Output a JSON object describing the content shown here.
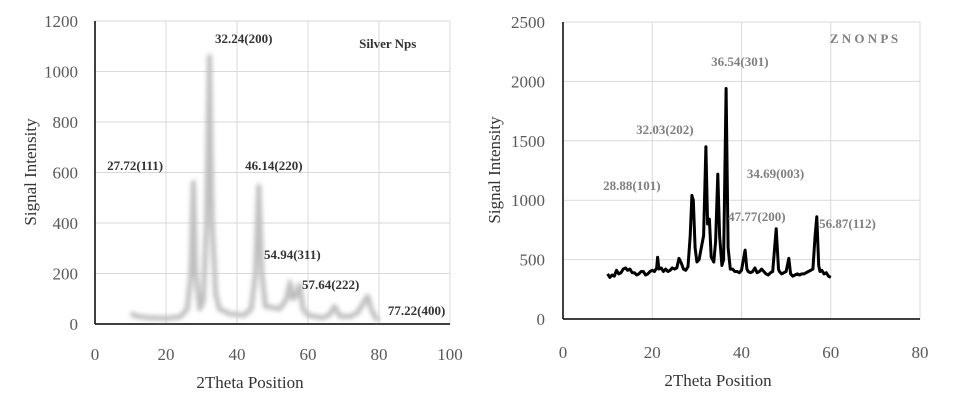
{
  "chart_data": [
    {
      "type": "line",
      "xlabel": "2Theta Position",
      "ylabel": "Signal Intensity",
      "xlim": [
        0,
        100
      ],
      "ylim": [
        0,
        1200
      ],
      "xticks": [
        0,
        20,
        40,
        60,
        80,
        100
      ],
      "yticks": [
        0,
        200,
        400,
        600,
        800,
        1000,
        1200
      ],
      "grid": true,
      "line_color": "#bfbfbf",
      "annotations": [
        {
          "text": "Silver Nps",
          "x": 74.4,
          "y": 1093
        },
        {
          "text": "32.24(200)",
          "x": 33.8,
          "y": 1113
        },
        {
          "text": "27.72(111)",
          "x": 3.4,
          "y": 610
        },
        {
          "text": "46.14(220)",
          "x": 42.3,
          "y": 610
        },
        {
          "text": "54.94(311)",
          "x": 47.6,
          "y": 257
        },
        {
          "text": "57.64(222)",
          "x": 58.3,
          "y": 139
        },
        {
          "text": "77.22(400)",
          "x": 82.5,
          "y": 36
        }
      ],
      "series": [
        {
          "points": [
            [
              10,
              40
            ],
            [
              12,
              30
            ],
            [
              15,
              25
            ],
            [
              20,
              22
            ],
            [
              24,
              28
            ],
            [
              26,
              60
            ],
            [
              27,
              200
            ],
            [
              27.72,
              560
            ],
            [
              28.4,
              200
            ],
            [
              29.5,
              60
            ],
            [
              30.5,
              90
            ],
            [
              31.4,
              400
            ],
            [
              32.24,
              1060
            ],
            [
              33,
              400
            ],
            [
              34,
              120
            ],
            [
              35,
              60
            ],
            [
              38,
              40
            ],
            [
              42,
              35
            ],
            [
              44,
              60
            ],
            [
              45.2,
              200
            ],
            [
              46.14,
              545
            ],
            [
              47,
              200
            ],
            [
              48,
              70
            ],
            [
              52,
              60
            ],
            [
              54,
              100
            ],
            [
              54.94,
              165
            ],
            [
              55.8,
              100
            ],
            [
              56.5,
              110
            ],
            [
              57.64,
              155
            ],
            [
              58.6,
              60
            ],
            [
              60,
              35
            ],
            [
              64,
              25
            ],
            [
              66,
              35
            ],
            [
              67.5,
              70
            ],
            [
              69,
              30
            ],
            [
              72,
              30
            ],
            [
              74,
              45
            ],
            [
              75.5,
              80
            ],
            [
              76.8,
              110
            ],
            [
              77.8,
              60
            ],
            [
              79,
              25
            ],
            [
              80,
              15
            ]
          ]
        }
      ]
    },
    {
      "type": "line",
      "xlabel": "2Theta Position",
      "ylabel": "Signal  Intensity",
      "xlim": [
        0,
        80
      ],
      "ylim": [
        0,
        2500
      ],
      "xticks": [
        0,
        20,
        40,
        60,
        80
      ],
      "yticks": [
        0,
        500,
        1000,
        1500,
        2000,
        2500
      ],
      "grid": true,
      "line_color": "#000000",
      "annotations": [
        {
          "text": "Z N O N P S",
          "x": 59.8,
          "y": 2323
        },
        {
          "text": "36.54(301)",
          "x": 33.2,
          "y": 2130
        },
        {
          "text": "32.03(202)",
          "x": 16.4,
          "y": 1557
        },
        {
          "text": "28.88(101)",
          "x": 9.0,
          "y": 1086
        },
        {
          "text": "34.69(003)",
          "x": 41.2,
          "y": 1187
        },
        {
          "text": "47.77(200)",
          "x": 37.0,
          "y": 825
        },
        {
          "text": "56.87(112)",
          "x": 57.4,
          "y": 766
        }
      ],
      "series": [
        {
          "points": [
            [
              10,
              380
            ],
            [
              10.5,
              350
            ],
            [
              11,
              370
            ],
            [
              11.5,
              360
            ],
            [
              12,
              410
            ],
            [
              12.5,
              380
            ],
            [
              13,
              390
            ],
            [
              13.5,
              420
            ],
            [
              14,
              430
            ],
            [
              14.5,
              410
            ],
            [
              15,
              420
            ],
            [
              15.5,
              390
            ],
            [
              16,
              390
            ],
            [
              16.5,
              370
            ],
            [
              17,
              380
            ],
            [
              17.5,
              400
            ],
            [
              18,
              400
            ],
            [
              18.5,
              370
            ],
            [
              19,
              380
            ],
            [
              19.5,
              400
            ],
            [
              20,
              410
            ],
            [
              20.5,
              400
            ],
            [
              21,
              430
            ],
            [
              21.2,
              520
            ],
            [
              21.5,
              420
            ],
            [
              22,
              430
            ],
            [
              22.5,
              400
            ],
            [
              23,
              420
            ],
            [
              23.5,
              400
            ],
            [
              24,
              410
            ],
            [
              24.5,
              430
            ],
            [
              25,
              420
            ],
            [
              25.5,
              430
            ],
            [
              26,
              510
            ],
            [
              26.5,
              470
            ],
            [
              27,
              420
            ],
            [
              27.5,
              410
            ],
            [
              28,
              440
            ],
            [
              28.5,
              700
            ],
            [
              28.88,
              1040
            ],
            [
              29.2,
              1000
            ],
            [
              29.6,
              600
            ],
            [
              30,
              480
            ],
            [
              30.5,
              500
            ],
            [
              31,
              600
            ],
            [
              31.5,
              700
            ],
            [
              32.03,
              1450
            ],
            [
              32.4,
              800
            ],
            [
              32.8,
              840
            ],
            [
              33.2,
              520
            ],
            [
              33.8,
              480
            ],
            [
              34.2,
              650
            ],
            [
              34.69,
              1220
            ],
            [
              35.1,
              700
            ],
            [
              35.6,
              450
            ],
            [
              36,
              500
            ],
            [
              36.54,
              1940
            ],
            [
              37,
              600
            ],
            [
              37.5,
              420
            ],
            [
              38,
              420
            ],
            [
              38.5,
              400
            ],
            [
              39,
              400
            ],
            [
              39.5,
              390
            ],
            [
              40,
              410
            ],
            [
              40.8,
              580
            ],
            [
              41.2,
              420
            ],
            [
              41.5,
              400
            ],
            [
              42,
              390
            ],
            [
              42.5,
              400
            ],
            [
              43,
              430
            ],
            [
              43.5,
              390
            ],
            [
              44,
              400
            ],
            [
              44.5,
              420
            ],
            [
              45,
              400
            ],
            [
              45.5,
              380
            ],
            [
              46,
              370
            ],
            [
              46.5,
              390
            ],
            [
              47,
              400
            ],
            [
              47.77,
              760
            ],
            [
              48.3,
              420
            ],
            [
              48.5,
              400
            ],
            [
              49,
              380
            ],
            [
              49.5,
              390
            ],
            [
              50,
              400
            ],
            [
              50.6,
              510
            ],
            [
              51,
              380
            ],
            [
              51.5,
              360
            ],
            [
              52,
              370
            ],
            [
              52.5,
              380
            ],
            [
              53,
              370
            ],
            [
              53.5,
              380
            ],
            [
              54,
              380
            ],
            [
              54.5,
              390
            ],
            [
              55,
              400
            ],
            [
              55.5,
              410
            ],
            [
              56,
              420
            ],
            [
              56.5,
              700
            ],
            [
              56.87,
              860
            ],
            [
              57.3,
              450
            ],
            [
              57.6,
              400
            ],
            [
              58,
              410
            ],
            [
              58.5,
              380
            ],
            [
              59,
              390
            ],
            [
              59.5,
              360
            ],
            [
              60,
              350
            ]
          ]
        }
      ]
    }
  ]
}
